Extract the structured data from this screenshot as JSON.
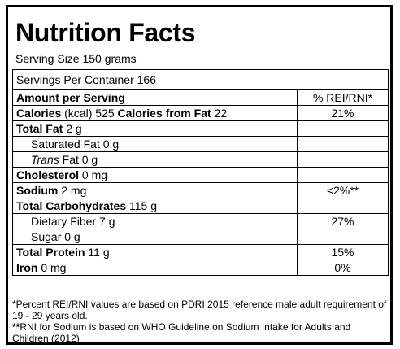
{
  "title": "Nutrition Facts",
  "serving_size": "Serving Size 150 grams",
  "servings_per_container": "Servings Per Container 166",
  "header": {
    "left": "Amount per Serving",
    "right": "% REI/RNI*"
  },
  "calories": {
    "label": "Calories",
    "unit": "(kcal) 525",
    "fat_label": "Calories from Fat",
    "fat_value": "22",
    "dv": "21%"
  },
  "rows": [
    {
      "name": "Total Fat",
      "amount": "2 g",
      "dv": ""
    },
    {
      "name": "Saturated Fat",
      "amount": "0 g",
      "dv": ""
    },
    {
      "name": "Trans",
      "amount": "Fat 0 g",
      "dv": ""
    },
    {
      "name": "Cholesterol",
      "amount": "0 mg",
      "dv": ""
    },
    {
      "name": "Sodium",
      "amount": "2 mg",
      "dv": "<2%**"
    },
    {
      "name": "Total Carbohydrates",
      "amount": "115 g",
      "dv": ""
    },
    {
      "name": "Dietary Fiber",
      "amount": "7 g",
      "dv": "27%"
    },
    {
      "name": "Sugar",
      "amount": "0 g",
      "dv": ""
    },
    {
      "name": "Total Protein",
      "amount": "11 g",
      "dv": "15%"
    },
    {
      "name": "Iron",
      "amount": "0 mg",
      "dv": "0%"
    }
  ],
  "footnotes": {
    "note1": "*Percent REI/RNI values are based on PDRI 2015 reference male adult requirement of 19 - 29 years old.",
    "note2_mark": "**",
    "note2_text": "RNI for Sodium is based on WHO Guideline on Sodium Intake for Adults and Children (2012)"
  }
}
